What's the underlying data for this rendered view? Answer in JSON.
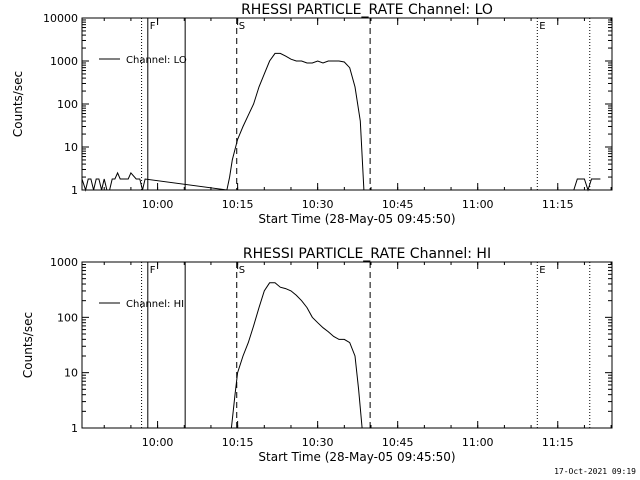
{
  "timestamp": "17-Oct-2021 09:19",
  "chart_data": [
    {
      "type": "line",
      "title": "RHESSI PARTICLE_RATE Channel: LO",
      "xlabel": "Start Time (28-May-05 09:45:50)",
      "ylabel": "Counts/sec",
      "y_scale": "log",
      "ylim": [
        1,
        10000
      ],
      "xlim": [
        "09:45:50",
        "11:25:10"
      ],
      "y_ticks": [
        1,
        10,
        100,
        1000,
        10000
      ],
      "y_tick_labels": [
        "1",
        "10",
        "100",
        "1000",
        "10000"
      ],
      "x_ticks": [
        "10:00",
        "10:15",
        "10:30",
        "10:45",
        "11:00",
        "11:15"
      ],
      "legend": "Channel: LO",
      "legend_position": "top-left",
      "markers": [
        {
          "time": "09:57:00",
          "style": "dotted",
          "label": ""
        },
        {
          "time": "09:58:10",
          "style": "solid",
          "label": "F"
        },
        {
          "time": "10:05:10",
          "style": "solid",
          "label": ""
        },
        {
          "time": "10:14:50",
          "style": "dashed",
          "label": "S"
        },
        {
          "time": "10:39:50",
          "style": "dashed",
          "label": ""
        },
        {
          "time": "11:11:10",
          "style": "dotted",
          "label": "E"
        },
        {
          "time": "11:21:00",
          "style": "dotted",
          "label": ""
        }
      ],
      "series": [
        {
          "x": [
            "09:45:50",
            "09:46:30",
            "09:47:00",
            "09:47:30",
            "09:48:00",
            "09:48:30",
            "09:49:00",
            "09:49:30",
            "09:50:00",
            "09:50:30",
            "09:51:00",
            "09:51:30",
            "09:52:00",
            "09:52:30",
            "09:53:00",
            "09:53:30",
            "09:54:00",
            "09:54:30",
            "09:55:00",
            "09:56:00",
            "09:56:40",
            "09:57:10",
            "09:57:40",
            "10:13:00",
            "10:13:30",
            "10:14:00",
            "10:15:00",
            "10:16:00",
            "10:17:00",
            "10:18:00",
            "10:19:00",
            "10:20:00",
            "10:21:00",
            "10:22:00",
            "10:23:00",
            "10:24:00",
            "10:25:00",
            "10:26:00",
            "10:27:00",
            "10:28:00",
            "10:29:00",
            "10:30:00",
            "10:31:00",
            "10:32:00",
            "10:33:00",
            "10:34:00",
            "10:35:00",
            "10:36:00",
            "10:37:00",
            "10:38:00",
            "10:38:40",
            "11:18:00",
            "11:18:40",
            "11:19:20",
            "11:20:00",
            "11:20:40",
            "11:21:20",
            "11:22:00",
            "11:23:00"
          ],
          "y": [
            1.8,
            1,
            1.8,
            1.8,
            1,
            1.8,
            1.8,
            1,
            1.8,
            1,
            1,
            1.8,
            1.8,
            2.5,
            1.8,
            1.8,
            1.8,
            1.8,
            2.5,
            1.8,
            1.8,
            1,
            1.8,
            1,
            2,
            5,
            15,
            30,
            55,
            100,
            250,
            500,
            1000,
            1500,
            1500,
            1300,
            1100,
            1000,
            1000,
            900,
            900,
            1000,
            900,
            1000,
            1000,
            1000,
            950,
            700,
            250,
            40,
            1,
            1,
            1.8,
            1.8,
            1.8,
            1,
            1.8,
            1.8,
            1.8
          ]
        }
      ]
    },
    {
      "type": "line",
      "title": "RHESSI PARTICLE_RATE Channel: HI",
      "xlabel": "Start Time (28-May-05 09:45:50)",
      "ylabel": "Counts/sec",
      "y_scale": "log",
      "ylim": [
        1,
        1000
      ],
      "xlim": [
        "09:45:50",
        "11:25:10"
      ],
      "y_ticks": [
        1,
        10,
        100,
        1000
      ],
      "y_tick_labels": [
        "1",
        "10",
        "100",
        "1000"
      ],
      "x_ticks": [
        "10:00",
        "10:15",
        "10:30",
        "10:45",
        "11:00",
        "11:15"
      ],
      "legend": "Channel: HI",
      "legend_position": "top-left",
      "markers": [
        {
          "time": "09:57:00",
          "style": "dotted",
          "label": ""
        },
        {
          "time": "09:58:10",
          "style": "solid",
          "label": "F"
        },
        {
          "time": "10:05:10",
          "style": "solid",
          "label": ""
        },
        {
          "time": "10:14:50",
          "style": "dashed",
          "label": "S"
        },
        {
          "time": "10:39:50",
          "style": "dashed",
          "label": ""
        },
        {
          "time": "11:11:10",
          "style": "dotted",
          "label": "E"
        },
        {
          "time": "11:21:00",
          "style": "dotted",
          "label": ""
        }
      ],
      "series": [
        {
          "x": [
            "10:13:50",
            "10:14:30",
            "10:15:00",
            "10:16:00",
            "10:17:00",
            "10:18:00",
            "10:19:00",
            "10:20:00",
            "10:21:00",
            "10:22:00",
            "10:23:00",
            "10:24:00",
            "10:25:00",
            "10:26:00",
            "10:27:00",
            "10:28:00",
            "10:29:00",
            "10:30:00",
            "10:31:00",
            "10:32:00",
            "10:33:00",
            "10:34:00",
            "10:35:00",
            "10:36:00",
            "10:37:00",
            "10:37:40",
            "10:38:20"
          ],
          "y": [
            1,
            4,
            10,
            20,
            35,
            70,
            150,
            300,
            420,
            420,
            350,
            330,
            300,
            250,
            200,
            150,
            100,
            80,
            65,
            55,
            45,
            40,
            40,
            35,
            20,
            5,
            1
          ]
        }
      ]
    }
  ]
}
